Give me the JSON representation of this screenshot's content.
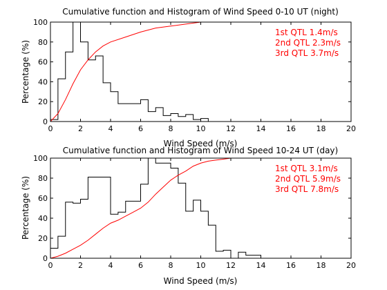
{
  "colors": {
    "histogram": "#000000",
    "cumulative": "#ff0000",
    "quartile_text": "#ff0000"
  },
  "chart_data": [
    {
      "type": "line",
      "title": "Cumulative function and Histogram of Wind Speed 0-10 UT (night)",
      "xlabel": "Wind Speed (m/s)",
      "ylabel": "Percentage (%)",
      "xlim": [
        0,
        20
      ],
      "ylim": [
        0,
        100
      ],
      "xticks": [
        0,
        2,
        4,
        6,
        8,
        10,
        12,
        14,
        16,
        18,
        20
      ],
      "yticks": [
        0,
        20,
        40,
        60,
        80,
        100
      ],
      "grid": false,
      "annotations": [
        "1st QTL 1.4m/s",
        "2nd QTL 2.3m/s",
        "3rd QTL 3.7m/s"
      ],
      "series": [
        {
          "kind": "histogram-step",
          "bin_edges": [
            0,
            0.5,
            1,
            1.5,
            2,
            2.5,
            3,
            3.5,
            4,
            4.5,
            5,
            5.5,
            6,
            6.5,
            7,
            7.5,
            8,
            8.5,
            9,
            9.5,
            10,
            10.5
          ],
          "values": [
            2,
            43,
            70,
            100,
            80,
            62,
            66,
            39,
            30,
            18,
            18,
            18,
            22,
            10,
            14,
            6,
            8,
            5,
            7,
            2,
            3
          ]
        },
        {
          "kind": "cumulative",
          "x": [
            0,
            0.5,
            1,
            1.5,
            2,
            2.5,
            3,
            3.5,
            4,
            5,
            6,
            7,
            8,
            9,
            10,
            12.5
          ],
          "y": [
            0,
            8,
            22,
            38,
            52,
            62,
            70,
            76,
            80,
            85,
            90,
            94,
            96,
            98,
            100,
            100
          ]
        }
      ]
    },
    {
      "type": "line",
      "title": "Cumulative function and Histogram of Wind Speed 10-24 UT (day)",
      "xlabel": "Wind Speed (m/s)",
      "ylabel": "Percentage (%)",
      "xlim": [
        0,
        20
      ],
      "ylim": [
        0,
        100
      ],
      "xticks": [
        0,
        2,
        4,
        6,
        8,
        10,
        12,
        14,
        16,
        18,
        20
      ],
      "yticks": [
        0,
        20,
        40,
        60,
        80,
        100
      ],
      "grid": false,
      "annotations": [
        "1st QTL 3.1m/s",
        "2nd QTL 5.9m/s",
        "3rd QTL 7.8m/s"
      ],
      "series": [
        {
          "kind": "histogram-step",
          "bin_edges": [
            0,
            0.5,
            1,
            1.5,
            2,
            2.5,
            3,
            3.5,
            4,
            4.5,
            5,
            5.5,
            6,
            6.5,
            7,
            7.5,
            8,
            8.5,
            9,
            9.5,
            10,
            10.5,
            11,
            11.5,
            12,
            12.5,
            13,
            13.5,
            14
          ],
          "values": [
            10,
            22,
            56,
            55,
            59,
            81,
            81,
            81,
            44,
            46,
            57,
            57,
            74,
            100,
            95,
            95,
            90,
            75,
            47,
            58,
            47,
            33,
            7,
            8,
            0,
            6,
            3,
            3
          ]
        },
        {
          "kind": "cumulative",
          "x": [
            0,
            0.5,
            1,
            1.5,
            2,
            2.5,
            3,
            3.5,
            4,
            4.5,
            5,
            5.5,
            6,
            6.5,
            7,
            7.5,
            8,
            8.5,
            9,
            9.5,
            10,
            10.5,
            11,
            11.5,
            12,
            13
          ],
          "y": [
            0,
            2,
            5,
            9,
            13,
            18,
            24,
            30,
            35,
            38,
            42,
            46,
            50,
            56,
            64,
            71,
            78,
            83,
            87,
            92,
            95,
            97,
            98,
            99,
            100,
            100
          ]
        }
      ]
    }
  ]
}
